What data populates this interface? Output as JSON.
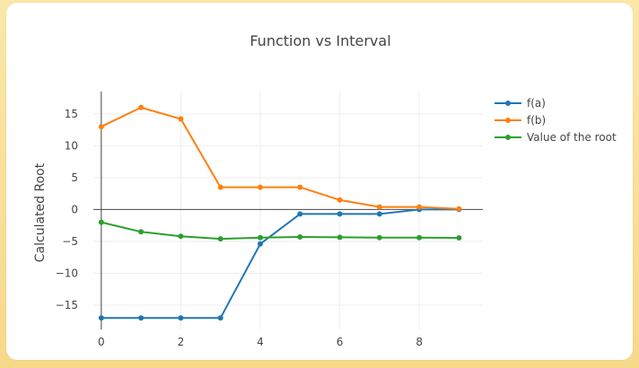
{
  "chart_data": {
    "type": "line",
    "title": "Function vs Interval",
    "xlabel": "",
    "ylabel": "Calculated Root",
    "x": [
      0,
      1,
      2,
      3,
      4,
      5,
      6,
      7,
      8,
      9
    ],
    "xticks": [
      0,
      2,
      4,
      6,
      8
    ],
    "yticks": [
      -15,
      -10,
      -5,
      0,
      5,
      10,
      15
    ],
    "xlim": [
      -0.2,
      9.6
    ],
    "ylim": [
      -18.8,
      18.5
    ],
    "grid": true,
    "legend_position": "right",
    "series": [
      {
        "name": "f(a)",
        "color": "#1f77b4",
        "values": [
          -17,
          -17,
          -17,
          -17,
          -5.4,
          -0.7,
          -0.7,
          -0.7,
          0,
          0
        ]
      },
      {
        "name": "f(b)",
        "color": "#ff7f0e",
        "values": [
          13,
          16,
          14.2,
          3.5,
          3.5,
          3.5,
          1.5,
          0.4,
          0.4,
          0.1
        ]
      },
      {
        "name": "Value of the root",
        "color": "#2ca02c",
        "values": [
          -2,
          -3.5,
          -4.2,
          -4.6,
          -4.4,
          -4.3,
          -4.35,
          -4.4,
          -4.4,
          -4.45
        ]
      }
    ]
  }
}
